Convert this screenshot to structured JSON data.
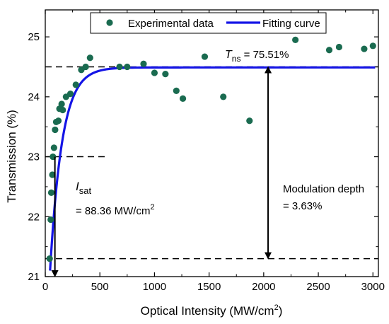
{
  "chart_data": {
    "type": "scatter",
    "xlabel": "Optical Intensity (MW/cm²)",
    "xlabel_main": "Optical Intensity (MW/cm",
    "xlabel_sup": "2",
    "xlabel_close": ")",
    "ylabel": "Transmission (%)",
    "xlim": [
      0,
      3050
    ],
    "ylim": [
      21,
      25.45
    ],
    "x_ticks": [
      0,
      500,
      1000,
      1500,
      2000,
      2500,
      3000
    ],
    "x_tick_labels": [
      "0",
      "500",
      "1000",
      "1500",
      "2000",
      "2500",
      "3000"
    ],
    "y_ticks": [
      21,
      22,
      23,
      24,
      25
    ],
    "y_tick_labels": [
      "21",
      "22",
      "23",
      "24",
      "25"
    ],
    "legend": {
      "placement": "top-center",
      "entries": [
        "Experimental data",
        "Fitting curve"
      ]
    },
    "series": [
      {
        "name": "Experimental data",
        "kind": "scatter",
        "color": "#1a6b50",
        "points": [
          [
            40,
            21.3
          ],
          [
            50,
            21.95
          ],
          [
            55,
            22.4
          ],
          [
            65,
            22.7
          ],
          [
            70,
            23.0
          ],
          [
            80,
            23.15
          ],
          [
            90,
            23.45
          ],
          [
            100,
            23.58
          ],
          [
            120,
            23.6
          ],
          [
            130,
            23.8
          ],
          [
            150,
            23.88
          ],
          [
            160,
            23.78
          ],
          [
            190,
            24.0
          ],
          [
            230,
            24.05
          ],
          [
            280,
            24.2
          ],
          [
            330,
            24.45
          ],
          [
            370,
            24.5
          ],
          [
            410,
            24.65
          ],
          [
            680,
            24.5
          ],
          [
            750,
            24.5
          ],
          [
            900,
            24.55
          ],
          [
            1000,
            24.4
          ],
          [
            1100,
            24.38
          ],
          [
            1200,
            24.1
          ],
          [
            1260,
            23.97
          ],
          [
            1460,
            24.67
          ],
          [
            1630,
            24.0
          ],
          [
            1870,
            23.6
          ],
          [
            2290,
            24.95
          ],
          [
            2600,
            24.78
          ],
          [
            2690,
            24.83
          ],
          [
            2920,
            24.8
          ],
          [
            3000,
            24.85
          ]
        ]
      },
      {
        "name": "Fitting curve",
        "kind": "line",
        "color": "#1414e6",
        "model": {
          "T_ns": 24.49,
          "x0": 44,
          "y0": 21.1,
          "tau": 110
        }
      }
    ],
    "reference_lines": {
      "upper_y": 24.5,
      "lower_y": 21.3,
      "half_y": 23.0,
      "half_x_max": 550,
      "isat_x": 88.36,
      "depth_x": 2040
    },
    "annotations": {
      "tns_label": "T",
      "tns_sub": "ns",
      "tns_value": " = 75.51%",
      "isat_label": "I",
      "isat_sub": "sat",
      "isat_value": "= 88.36 MW/cm",
      "isat_value_sup": "2",
      "depth_label": "Modulation depth",
      "depth_value": "= 3.63%"
    }
  }
}
